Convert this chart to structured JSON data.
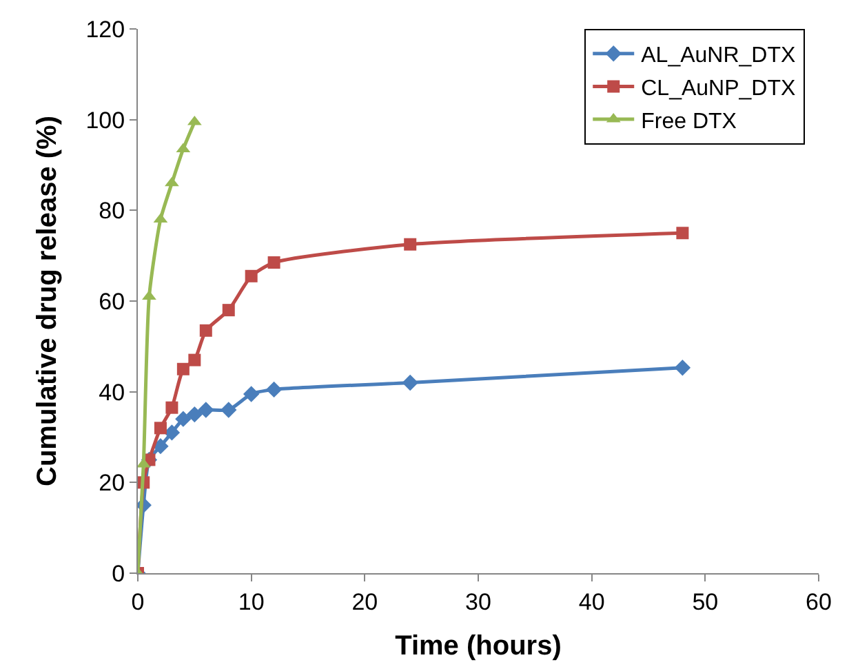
{
  "chart_data": {
    "type": "line",
    "xlabel": "Time (hours)",
    "ylabel": "Cumulative drug release (%)",
    "xlim": [
      0,
      60
    ],
    "xticks": [
      0,
      10,
      20,
      30,
      40,
      50,
      60
    ],
    "ylim": [
      0,
      120
    ],
    "yticks": [
      0,
      20,
      40,
      60,
      80,
      100,
      120
    ],
    "legend": "top right",
    "line_style": "solid",
    "series": [
      {
        "name": "AL_AuNR_DTX",
        "color": "#4a7ebb",
        "marker": "diamond",
        "x": [
          0,
          0.5,
          1,
          2,
          3,
          4,
          5,
          6,
          8,
          10,
          12,
          24,
          48
        ],
        "values": [
          0,
          15,
          25,
          28,
          31,
          34,
          35,
          36,
          36,
          39.5,
          40.5,
          42,
          45.3
        ]
      },
      {
        "name": "CL_AuNP_DTX",
        "color": "#be4b48",
        "marker": "square",
        "x": [
          0,
          0.5,
          1,
          2,
          3,
          4,
          5,
          6,
          8,
          10,
          12,
          24,
          48
        ],
        "values": [
          0,
          20,
          25,
          32,
          36.5,
          45,
          47,
          53.5,
          58,
          65.5,
          68.5,
          72.5,
          75
        ]
      },
      {
        "name": "Free DTX",
        "color": "#98b954",
        "marker": "triangle",
        "x": [
          0,
          0.5,
          1,
          2,
          3,
          4,
          5
        ],
        "values": [
          0,
          24,
          61,
          78,
          86,
          93.5,
          99.5
        ]
      }
    ]
  }
}
